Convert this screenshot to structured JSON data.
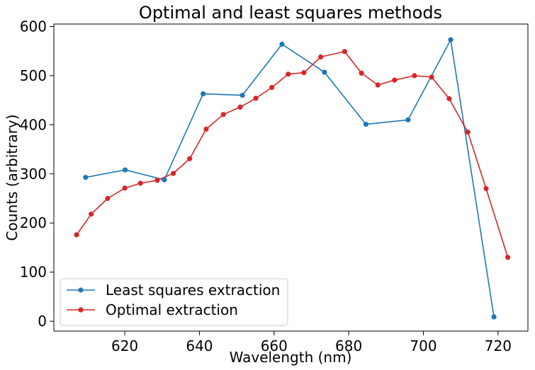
{
  "chart_data": {
    "type": "line",
    "title": "Optimal and least squares methods",
    "xlabel": "Wavelength (nm)",
    "ylabel": "Counts (arbitrary)",
    "xlim": [
      601,
      728
    ],
    "ylim": [
      -20,
      605
    ],
    "x_ticks": [
      620,
      640,
      660,
      680,
      700,
      720
    ],
    "y_ticks": [
      0,
      100,
      200,
      300,
      400,
      500,
      600
    ],
    "grid": false,
    "legend_position": "lower-left",
    "series": [
      {
        "name": "Least squares extraction",
        "color": "#1f77b4",
        "x": [
          609.5,
          620.1,
          630.6,
          641.0,
          651.5,
          662.1,
          673.5,
          684.6,
          695.9,
          707.3,
          718.9
        ],
        "y": [
          293,
          308,
          288,
          463,
          460,
          564,
          507,
          401,
          410,
          573,
          9
        ]
      },
      {
        "name": "Optimal extraction",
        "color": "#d62728",
        "x": [
          607.1,
          611.0,
          615.4,
          620.0,
          624.2,
          628.7,
          633.0,
          637.4,
          641.8,
          646.4,
          650.9,
          655.1,
          659.4,
          663.8,
          668.0,
          672.5,
          678.9,
          683.4,
          687.8,
          692.3,
          697.6,
          702.2,
          706.9,
          711.9,
          716.8,
          722.6
        ],
        "y": [
          176,
          218,
          250,
          271,
          281,
          287,
          301,
          331,
          391,
          421,
          436,
          454,
          476,
          503,
          506,
          538,
          549,
          505,
          481,
          491,
          500,
          497,
          453,
          385,
          270,
          130
        ]
      }
    ]
  }
}
